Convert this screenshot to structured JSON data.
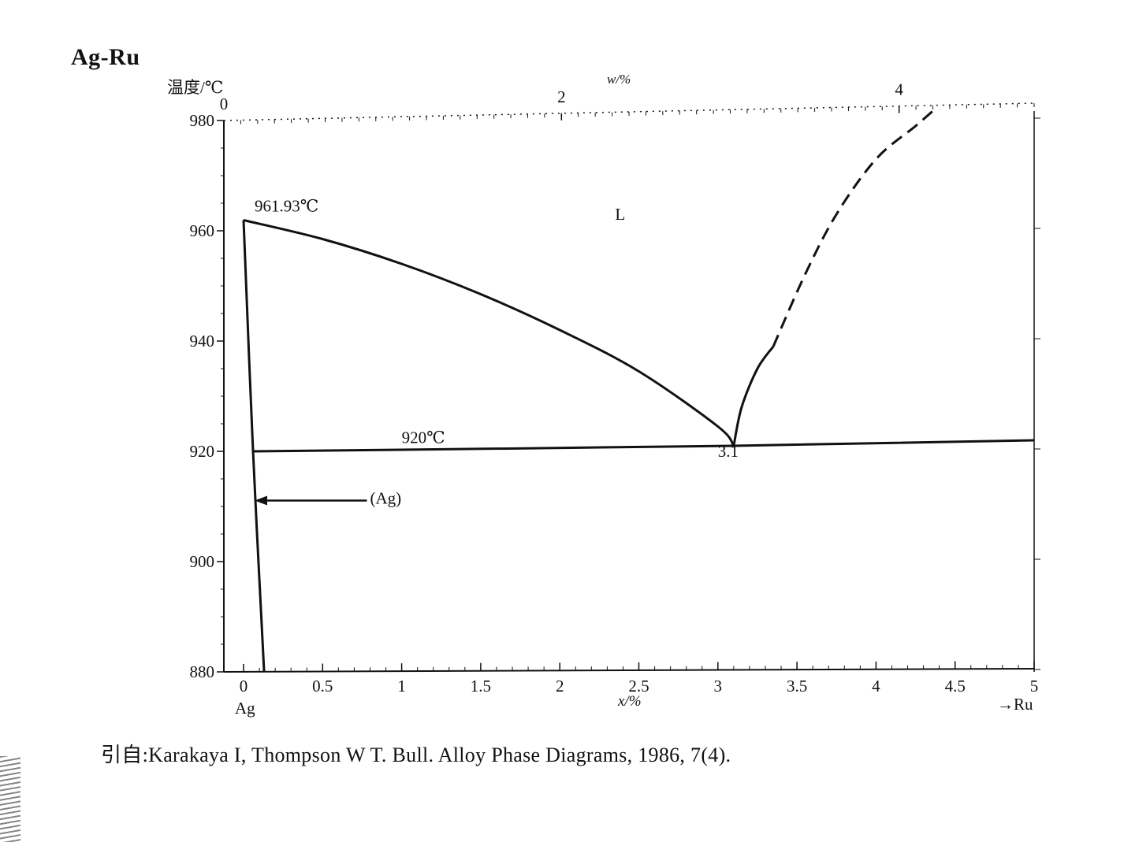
{
  "title": "Ag-Ru",
  "source": "引自:Karakaya I, Thompson W T. Bull.  Alloy Phase Diagrams, 1986, 7(4).",
  "chart_data": {
    "type": "line",
    "title": "Ag-Ru",
    "ylabel": "温度/℃",
    "xlabel": "x/%",
    "x2label": "w/%",
    "xlim": [
      0,
      5
    ],
    "ylim": [
      880,
      980
    ],
    "x2lim": [
      0,
      4.8
    ],
    "xticks": [
      0,
      0.5,
      1,
      1.5,
      2,
      2.5,
      3,
      3.5,
      4,
      4.5,
      5
    ],
    "xtick_labels": [
      "0",
      "0.5",
      "1",
      "1.5",
      "2",
      "2.5",
      "3",
      "3.5",
      "4",
      "4.5",
      "5"
    ],
    "x2ticks": [
      0,
      2,
      4
    ],
    "x2tick_labels": [
      "0",
      "2",
      "4"
    ],
    "yticks": [
      880,
      900,
      920,
      940,
      960,
      980
    ],
    "ytick_labels": [
      "880",
      "900",
      "920",
      "940",
      "960",
      "980"
    ],
    "x_left_label": "Ag",
    "x_right_label": "→Ru",
    "grid": false,
    "series": [
      {
        "style": "solid",
        "points": [
          [
            0,
            961.93
          ],
          [
            0.5,
            958.5
          ],
          [
            1,
            954
          ],
          [
            1.5,
            948.5
          ],
          [
            2,
            942
          ],
          [
            2.5,
            934.5
          ],
          [
            3,
            924.5
          ],
          [
            3.1,
            921
          ]
        ]
      },
      {
        "style": "solid",
        "points": [
          [
            0,
            961.93
          ],
          [
            0.06,
            920
          ],
          [
            0.13,
            880
          ]
        ]
      },
      {
        "style": "solid",
        "points": [
          [
            0.06,
            920
          ],
          [
            3.1,
            921
          ],
          [
            5,
            922
          ]
        ]
      },
      {
        "style": "solid",
        "points": [
          [
            3.1,
            921
          ],
          [
            3.15,
            928
          ],
          [
            3.25,
            935
          ],
          [
            3.35,
            939
          ]
        ]
      },
      {
        "style": "dashed",
        "points": [
          [
            3.35,
            939
          ],
          [
            3.55,
            952
          ],
          [
            3.75,
            963
          ],
          [
            4.0,
            973
          ],
          [
            4.25,
            979
          ],
          [
            4.37,
            982
          ]
        ]
      }
    ],
    "annotations": [
      {
        "text": "961.93℃",
        "x": 0.07,
        "y": 963.5
      },
      {
        "text": "L",
        "x": 2.35,
        "y": 962
      },
      {
        "text": "920℃",
        "x": 1.0,
        "y": 921.5
      },
      {
        "text": "3.1",
        "x": 3.0,
        "y": 919
      },
      {
        "text": "(Ag)",
        "x": 0.8,
        "y": 910.5
      }
    ],
    "arrow": {
      "from": [
        0.8,
        910.5
      ],
      "to": [
        0.07,
        910.5
      ]
    }
  }
}
